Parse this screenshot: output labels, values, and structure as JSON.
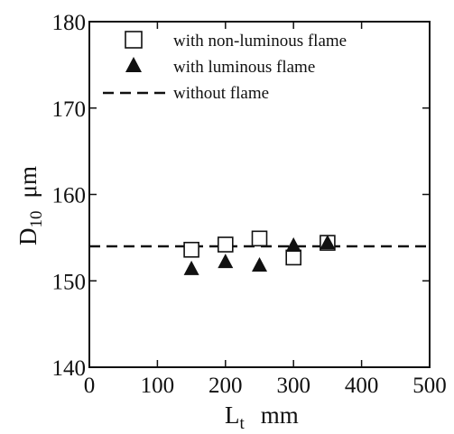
{
  "chart_data": {
    "type": "scatter",
    "xlabel": {
      "main": "L",
      "sub": "t",
      "unit": "mm"
    },
    "ylabel": {
      "main": "D",
      "sub": "10",
      "unit": "μm"
    },
    "xlim": [
      0,
      500
    ],
    "ylim": [
      140,
      180
    ],
    "xticks": [
      "0",
      "100",
      "200",
      "300",
      "400",
      "500"
    ],
    "yticks": [
      "140",
      "150",
      "160",
      "170",
      "180"
    ],
    "grid": false,
    "legend_position": "top-right",
    "series": [
      {
        "name": "with non-luminous flame",
        "marker": "open-square",
        "x": [
          150,
          200,
          250,
          300,
          350
        ],
        "y": [
          153.6,
          154.2,
          154.9,
          152.7,
          154.4
        ]
      },
      {
        "name": "with luminous flame",
        "marker": "filled-triangle",
        "x": [
          150,
          200,
          250,
          300,
          350
        ],
        "y": [
          151.4,
          152.2,
          151.8,
          154.1,
          154.4
        ]
      },
      {
        "name": "without flame",
        "marker": "dashed-line",
        "y_constant": 154
      }
    ]
  }
}
